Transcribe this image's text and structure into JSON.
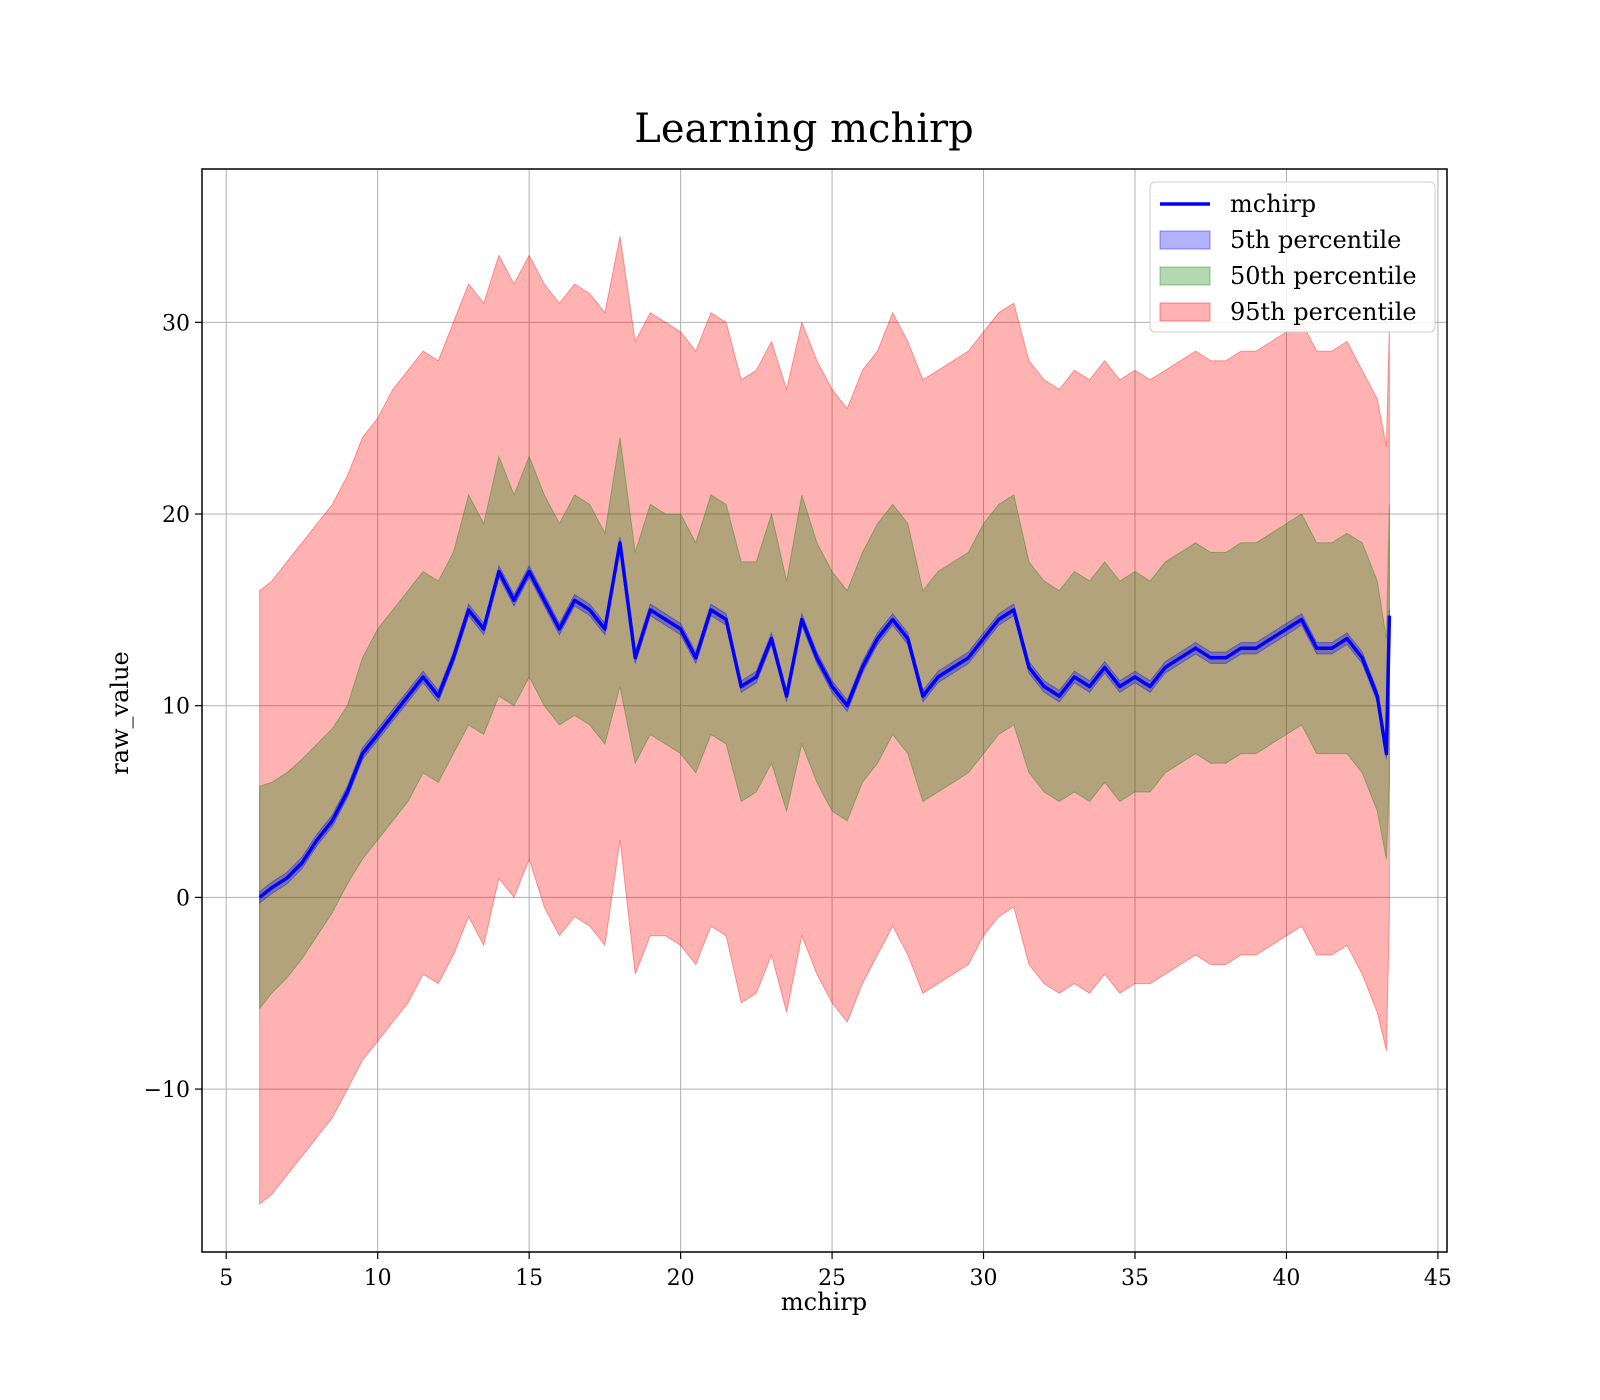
{
  "chart_data": {
    "type": "area",
    "title": "Learning mchirp",
    "xlabel": "mchirp",
    "ylabel": "raw_value",
    "xlim": [
      4.2,
      45.3
    ],
    "ylim": [
      -18.5,
      38.0
    ],
    "xticks": [
      5,
      10,
      15,
      20,
      25,
      30,
      35,
      40,
      45
    ],
    "yticks": [
      -10,
      0,
      10,
      20,
      30
    ],
    "ytick_labels": [
      "−10",
      "0",
      "10",
      "20",
      "30"
    ],
    "grid": true,
    "legend_position": "top-right",
    "x": [
      6.1,
      6.5,
      7.0,
      7.5,
      8.0,
      8.5,
      9.0,
      9.5,
      10.0,
      10.5,
      11.0,
      11.5,
      12.0,
      12.5,
      13.0,
      13.5,
      14.0,
      14.5,
      15.0,
      15.5,
      16.0,
      16.5,
      17.0,
      17.5,
      18.0,
      18.5,
      19.0,
      19.5,
      20.0,
      20.5,
      21.0,
      21.5,
      22.0,
      22.5,
      23.0,
      23.5,
      24.0,
      24.5,
      25.0,
      25.5,
      26.0,
      26.5,
      27.0,
      27.5,
      28.0,
      28.5,
      29.0,
      29.5,
      30.0,
      30.5,
      31.0,
      31.5,
      32.0,
      32.5,
      33.0,
      33.5,
      34.0,
      34.5,
      35.0,
      35.5,
      36.0,
      36.5,
      37.0,
      37.5,
      38.0,
      38.5,
      39.0,
      39.5,
      40.0,
      40.5,
      41.0,
      41.5,
      42.0,
      42.5,
      43.0,
      43.3,
      43.4
    ],
    "series": [
      {
        "name": "mchirp",
        "color": "#0000ff",
        "values": [
          0.0,
          0.5,
          1.0,
          1.8,
          3.0,
          4.0,
          5.5,
          7.5,
          8.5,
          9.5,
          10.5,
          11.5,
          10.5,
          12.5,
          15.0,
          14.0,
          17.0,
          15.5,
          17.0,
          15.5,
          14.0,
          15.5,
          15.0,
          14.0,
          18.5,
          12.5,
          15.0,
          14.5,
          14.0,
          12.5,
          15.0,
          14.5,
          11.0,
          11.5,
          13.5,
          10.5,
          14.5,
          12.5,
          11.0,
          10.0,
          12.0,
          13.5,
          14.5,
          13.5,
          10.5,
          11.5,
          12.0,
          12.5,
          13.5,
          14.5,
          15.0,
          12.0,
          11.0,
          10.5,
          11.5,
          11.0,
          12.0,
          11.0,
          11.5,
          11.0,
          12.0,
          12.5,
          13.0,
          12.5,
          12.5,
          13.0,
          13.0,
          13.5,
          14.0,
          14.5,
          13.0,
          13.0,
          13.5,
          12.5,
          10.5,
          7.5,
          14.7
        ]
      },
      {
        "name": "5th percentile",
        "color": "#0000ff",
        "opacity": 0.3,
        "lower": [
          -0.3,
          0.2,
          0.7,
          1.5,
          2.7,
          3.7,
          5.2,
          7.2,
          8.2,
          9.2,
          10.2,
          11.2,
          10.2,
          12.2,
          14.7,
          13.7,
          16.7,
          15.2,
          16.7,
          15.2,
          13.7,
          15.2,
          14.7,
          13.7,
          18.2,
          12.2,
          14.7,
          14.2,
          13.7,
          12.2,
          14.7,
          14.2,
          10.7,
          11.2,
          13.2,
          10.2,
          14.2,
          12.2,
          10.7,
          9.7,
          11.7,
          13.2,
          14.2,
          13.2,
          10.2,
          11.2,
          11.7,
          12.2,
          13.2,
          14.2,
          14.7,
          11.7,
          10.7,
          10.2,
          11.2,
          10.7,
          11.7,
          10.7,
          11.2,
          10.7,
          11.7,
          12.2,
          12.7,
          12.2,
          12.2,
          12.7,
          12.7,
          13.2,
          13.7,
          14.2,
          12.7,
          12.7,
          13.2,
          12.2,
          10.2,
          7.2,
          14.4
        ],
        "upper": [
          0.3,
          0.8,
          1.3,
          2.1,
          3.3,
          4.3,
          5.8,
          7.8,
          8.8,
          9.8,
          10.8,
          11.8,
          10.8,
          12.8,
          15.3,
          14.3,
          17.3,
          15.8,
          17.3,
          15.8,
          14.3,
          15.8,
          15.3,
          14.3,
          18.8,
          12.8,
          15.3,
          14.8,
          14.3,
          12.8,
          15.3,
          14.8,
          11.3,
          11.8,
          13.8,
          10.8,
          14.8,
          12.8,
          11.3,
          10.3,
          12.3,
          13.8,
          14.8,
          13.8,
          10.8,
          11.8,
          12.3,
          12.8,
          13.8,
          14.8,
          15.3,
          12.3,
          11.3,
          10.8,
          11.8,
          11.3,
          12.3,
          11.3,
          11.8,
          11.3,
          12.3,
          12.8,
          13.3,
          12.8,
          12.8,
          13.3,
          13.3,
          13.8,
          14.3,
          14.8,
          13.3,
          13.3,
          13.8,
          12.8,
          10.8,
          7.8,
          15.0
        ]
      },
      {
        "name": "50th percentile",
        "color": "#008000",
        "opacity": 0.3,
        "lower": [
          -5.8,
          -5.0,
          -4.2,
          -3.2,
          -2.0,
          -0.8,
          0.7,
          2.0,
          3.0,
          4.0,
          5.0,
          6.5,
          6.0,
          7.5,
          9.0,
          8.5,
          10.5,
          10.0,
          11.5,
          10.0,
          9.0,
          9.5,
          9.0,
          8.0,
          11.0,
          7.0,
          8.5,
          8.0,
          7.5,
          6.5,
          8.5,
          8.0,
          5.0,
          5.5,
          7.0,
          4.5,
          8.0,
          6.0,
          4.5,
          4.0,
          6.0,
          7.0,
          8.5,
          7.5,
          5.0,
          5.5,
          6.0,
          6.5,
          7.5,
          8.5,
          9.0,
          6.5,
          5.5,
          5.0,
          5.5,
          5.0,
          6.0,
          5.0,
          5.5,
          5.5,
          6.5,
          7.0,
          7.5,
          7.0,
          7.0,
          7.5,
          7.5,
          8.0,
          8.5,
          9.0,
          7.5,
          7.5,
          7.5,
          6.5,
          4.5,
          2.0,
          6.0
        ],
        "upper": [
          5.8,
          6.0,
          6.5,
          7.2,
          8.0,
          8.8,
          10.0,
          12.5,
          14.0,
          15.0,
          16.0,
          17.0,
          16.5,
          18.0,
          21.0,
          19.5,
          23.0,
          21.0,
          23.0,
          21.0,
          19.5,
          21.0,
          20.5,
          19.0,
          24.0,
          18.0,
          20.5,
          20.0,
          20.0,
          18.5,
          21.0,
          20.5,
          17.5,
          17.5,
          20.0,
          16.5,
          21.0,
          18.5,
          17.0,
          16.0,
          18.0,
          19.5,
          20.5,
          19.5,
          16.0,
          17.0,
          17.5,
          18.0,
          19.5,
          20.5,
          21.0,
          17.5,
          16.5,
          16.0,
          17.0,
          16.5,
          17.5,
          16.5,
          17.0,
          16.5,
          17.5,
          18.0,
          18.5,
          18.0,
          18.0,
          18.5,
          18.5,
          19.0,
          19.5,
          20.0,
          18.5,
          18.5,
          19.0,
          18.5,
          16.5,
          13.5,
          20.5
        ]
      },
      {
        "name": "95th percentile",
        "color": "#ff0000",
        "opacity": 0.3,
        "lower": [
          -16.0,
          -15.5,
          -14.5,
          -13.5,
          -12.5,
          -11.5,
          -10.0,
          -8.5,
          -7.5,
          -6.5,
          -5.5,
          -4.0,
          -4.5,
          -3.0,
          -1.0,
          -2.5,
          1.0,
          0.0,
          2.0,
          -0.5,
          -2.0,
          -1.0,
          -1.5,
          -2.5,
          3.0,
          -4.0,
          -2.0,
          -2.0,
          -2.5,
          -3.5,
          -1.5,
          -2.0,
          -5.5,
          -5.0,
          -3.0,
          -6.0,
          -2.0,
          -4.0,
          -5.5,
          -6.5,
          -4.5,
          -3.0,
          -1.5,
          -3.0,
          -5.0,
          -4.5,
          -4.0,
          -3.5,
          -2.0,
          -1.0,
          -0.5,
          -3.5,
          -4.5,
          -5.0,
          -4.5,
          -5.0,
          -4.0,
          -5.0,
          -4.5,
          -4.5,
          -4.0,
          -3.5,
          -3.0,
          -3.5,
          -3.5,
          -3.0,
          -3.0,
          -2.5,
          -2.0,
          -1.5,
          -3.0,
          -3.0,
          -2.5,
          -4.0,
          -6.0,
          -8.0,
          -1.0
        ],
        "upper": [
          16.0,
          16.5,
          17.5,
          18.5,
          19.5,
          20.5,
          22.0,
          24.0,
          25.0,
          26.5,
          27.5,
          28.5,
          28.0,
          30.0,
          32.0,
          31.0,
          33.5,
          32.0,
          33.5,
          32.0,
          31.0,
          32.0,
          31.5,
          30.5,
          34.5,
          29.0,
          30.5,
          30.0,
          29.5,
          28.5,
          30.5,
          30.0,
          27.0,
          27.5,
          29.0,
          26.5,
          30.0,
          28.0,
          26.5,
          25.5,
          27.5,
          28.5,
          30.5,
          29.0,
          27.0,
          27.5,
          28.0,
          28.5,
          29.5,
          30.5,
          31.0,
          28.0,
          27.0,
          26.5,
          27.5,
          27.0,
          28.0,
          27.0,
          27.5,
          27.0,
          27.5,
          28.0,
          28.5,
          28.0,
          28.0,
          28.5,
          28.5,
          29.0,
          29.5,
          30.0,
          28.5,
          28.5,
          29.0,
          27.5,
          26.0,
          23.5,
          30.0
        ]
      }
    ]
  }
}
